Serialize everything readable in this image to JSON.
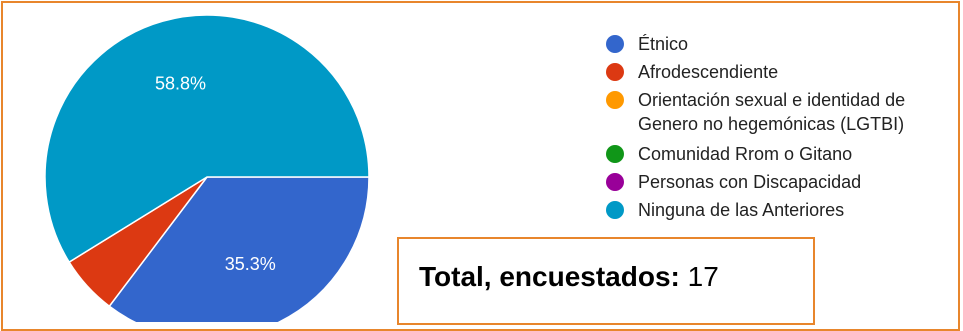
{
  "chart_data": {
    "type": "pie",
    "slices": [
      {
        "label": "Étnico",
        "value": 35.3,
        "display": "35.3%",
        "color": "#3366cc"
      },
      {
        "label": "Afrodescendiente",
        "value": 5.9,
        "display": "",
        "color": "#dc3912"
      },
      {
        "label": "Orientación sexual e identidad de Genero no hegemónicas (LGTBI)",
        "value": 0,
        "display": "",
        "color": "#ff9900"
      },
      {
        "label": "Comunidad Rrom o Gitano",
        "value": 0,
        "display": "",
        "color": "#109618"
      },
      {
        "label": "Personas con Discapacidad",
        "value": 0,
        "display": "",
        "color": "#990099"
      },
      {
        "label": "Ninguna de las Anteriores",
        "value": 58.8,
        "display": "58.8%",
        "color": "#0099c6"
      }
    ],
    "legend_position": "right"
  },
  "legend": {
    "items": [
      {
        "lines": [
          "Étnico"
        ],
        "color": "#3366cc"
      },
      {
        "lines": [
          "Afrodescendiente"
        ],
        "color": "#dc3912"
      },
      {
        "lines": [
          "Orientación sexual e identidad de",
          "Genero no hegemónicas (LGTBI)"
        ],
        "color": "#ff9900"
      },
      {
        "lines": [
          "Comunidad Rrom o Gitano"
        ],
        "color": "#109618"
      },
      {
        "lines": [
          "Personas con Discapacidad"
        ],
        "color": "#990099"
      },
      {
        "lines": [
          "Ninguna de las Anteriores"
        ],
        "color": "#0099c6"
      }
    ]
  },
  "summary": {
    "label": "Total, encuestados:",
    "value": "17"
  },
  "colors": {
    "border": "#e8862c"
  }
}
